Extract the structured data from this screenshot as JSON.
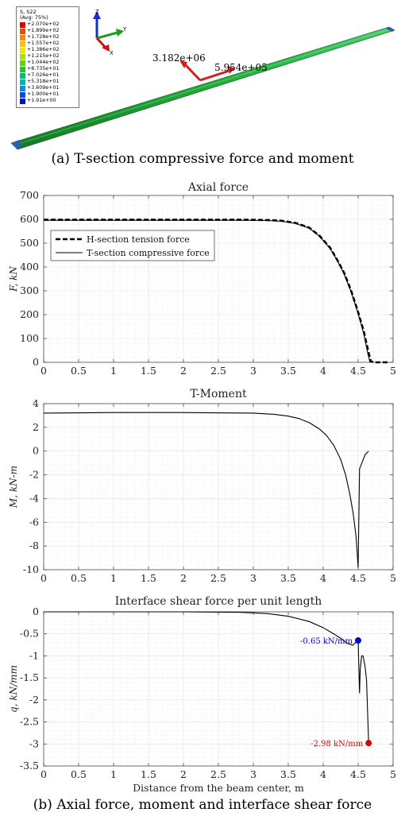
{
  "figure_a": {
    "caption": "(a) T-section compressive force and moment",
    "legend": {
      "title_line1": "S, S22",
      "title_line2": "(Avg: 75%)",
      "levels": [
        {
          "label": "+2.070e+02",
          "color": "#e00000"
        },
        {
          "label": "+1.899e+02",
          "color": "#f24a00"
        },
        {
          "label": "+1.728e+02",
          "color": "#ff8a00"
        },
        {
          "label": "+1.557e+02",
          "color": "#ffc000"
        },
        {
          "label": "+1.386e+02",
          "color": "#e8e800"
        },
        {
          "label": "+1.215e+02",
          "color": "#a8e000"
        },
        {
          "label": "+1.044e+02",
          "color": "#5ed800"
        },
        {
          "label": "+8.735e+01",
          "color": "#1fc830"
        },
        {
          "label": "+7.026e+01",
          "color": "#00c070"
        },
        {
          "label": "+5.318e+01",
          "color": "#00b8b0"
        },
        {
          "label": "+3.609e+01",
          "color": "#0090e0"
        },
        {
          "label": "+1.900e+01",
          "color": "#0050e8"
        },
        {
          "label": "+1.91e+00",
          "color": "#0010c8"
        }
      ]
    },
    "axis_labels": {
      "z": "Z",
      "y": "Y",
      "x": "X"
    },
    "annotations": {
      "force": "3.182e+06",
      "moment": "5.954e+05"
    }
  },
  "figure_b": {
    "caption": "(b) Axial force, moment and interface shear force",
    "xlabel": "Distance from the beam center, m"
  },
  "chart_data": [
    {
      "type": "line",
      "title": "Axial force",
      "xlabel": "",
      "ylabel": "F, kN",
      "xlim": [
        0,
        5
      ],
      "ylim": [
        0,
        700
      ],
      "xticks": [
        "0",
        "0.5",
        "1",
        "1.5",
        "2",
        "2.5",
        "3",
        "3.5",
        "4",
        "4.5",
        "5"
      ],
      "yticks": [
        "0",
        "100",
        "200",
        "300",
        "400",
        "500",
        "600",
        "700"
      ],
      "grid": true,
      "legend_position": "left",
      "series": [
        {
          "name": "H-section tension force",
          "style": "dashed",
          "x": [
            0,
            2.9,
            3.2,
            3.4,
            3.6,
            3.8,
            3.95,
            4.1,
            4.2,
            4.3,
            4.4,
            4.5,
            4.58,
            4.65,
            4.68,
            4.72,
            4.8,
            4.85,
            4.95
          ],
          "y": [
            598,
            598,
            597,
            594,
            585,
            565,
            530,
            480,
            430,
            375,
            300,
            210,
            130,
            40,
            5,
            0,
            0,
            0,
            0
          ]
        },
        {
          "name": "T-section compressive force",
          "style": "solid",
          "x": [
            0,
            2.9,
            3.2,
            3.4,
            3.6,
            3.8,
            3.95,
            4.1,
            4.2,
            4.3,
            4.4,
            4.5,
            4.58,
            4.64,
            4.67
          ],
          "y": [
            596,
            596,
            595,
            592,
            583,
            563,
            528,
            477,
            428,
            370,
            295,
            205,
            120,
            35,
            0
          ]
        }
      ]
    },
    {
      "type": "line",
      "title": "T-Moment",
      "xlabel": "",
      "ylabel": "M, kN-m",
      "xlim": [
        0,
        5
      ],
      "ylim": [
        -10,
        4
      ],
      "xticks": [
        "0",
        "0.5",
        "1",
        "1.5",
        "2",
        "2.5",
        "3",
        "3.5",
        "4",
        "4.5",
        "5"
      ],
      "yticks": [
        "4",
        "2",
        "0",
        "-2",
        "-4",
        "-6",
        "-8",
        "-10"
      ],
      "grid": true,
      "series": [
        {
          "style": "solid",
          "x": [
            0,
            1.0,
            2.0,
            3.0,
            3.3,
            3.5,
            3.65,
            3.8,
            3.95,
            4.05,
            4.15,
            4.25,
            4.32,
            4.38,
            4.43,
            4.47,
            4.5,
            4.52,
            4.56,
            4.6,
            4.65
          ],
          "y": [
            3.2,
            3.25,
            3.25,
            3.2,
            3.1,
            2.95,
            2.75,
            2.4,
            1.85,
            1.3,
            0.5,
            -0.7,
            -2.0,
            -3.6,
            -5.3,
            -7.2,
            -9.8,
            -1.5,
            -0.9,
            -0.3,
            0.0
          ]
        }
      ]
    },
    {
      "type": "line",
      "title": "Interface shear force per unit length",
      "xlabel": "Distance from the beam center, m",
      "ylabel": "q, kN/mm",
      "xlim": [
        0,
        5
      ],
      "ylim": [
        -3.5,
        0
      ],
      "xticks": [
        "0",
        "0.5",
        "1",
        "1.5",
        "2",
        "2.5",
        "3",
        "3.5",
        "4",
        "4.5",
        "5"
      ],
      "yticks": [
        "0",
        "-0.5",
        "-1",
        "-1.5",
        "-2",
        "-2.5",
        "-3",
        "-3.5"
      ],
      "grid": true,
      "series": [
        {
          "style": "solid",
          "x": [
            0,
            2.0,
            2.8,
            3.2,
            3.5,
            3.8,
            4.0,
            4.15,
            4.25,
            4.35,
            4.42,
            4.5,
            4.52,
            4.53,
            4.55,
            4.57,
            4.6,
            4.62,
            4.65
          ],
          "y": [
            0,
            0,
            -0.01,
            -0.04,
            -0.1,
            -0.22,
            -0.36,
            -0.5,
            -0.6,
            -0.72,
            -0.76,
            -0.65,
            -1.85,
            -1.3,
            -1.0,
            -1.0,
            -1.25,
            -1.55,
            -2.98
          ]
        }
      ],
      "annotations": [
        {
          "x": 4.5,
          "y": -0.65,
          "text": "-0.65 kN/mm",
          "color": "#0000cc"
        },
        {
          "x": 4.65,
          "y": -2.98,
          "text": "-2.98 kN/mm",
          "color": "#e00000"
        }
      ]
    }
  ]
}
